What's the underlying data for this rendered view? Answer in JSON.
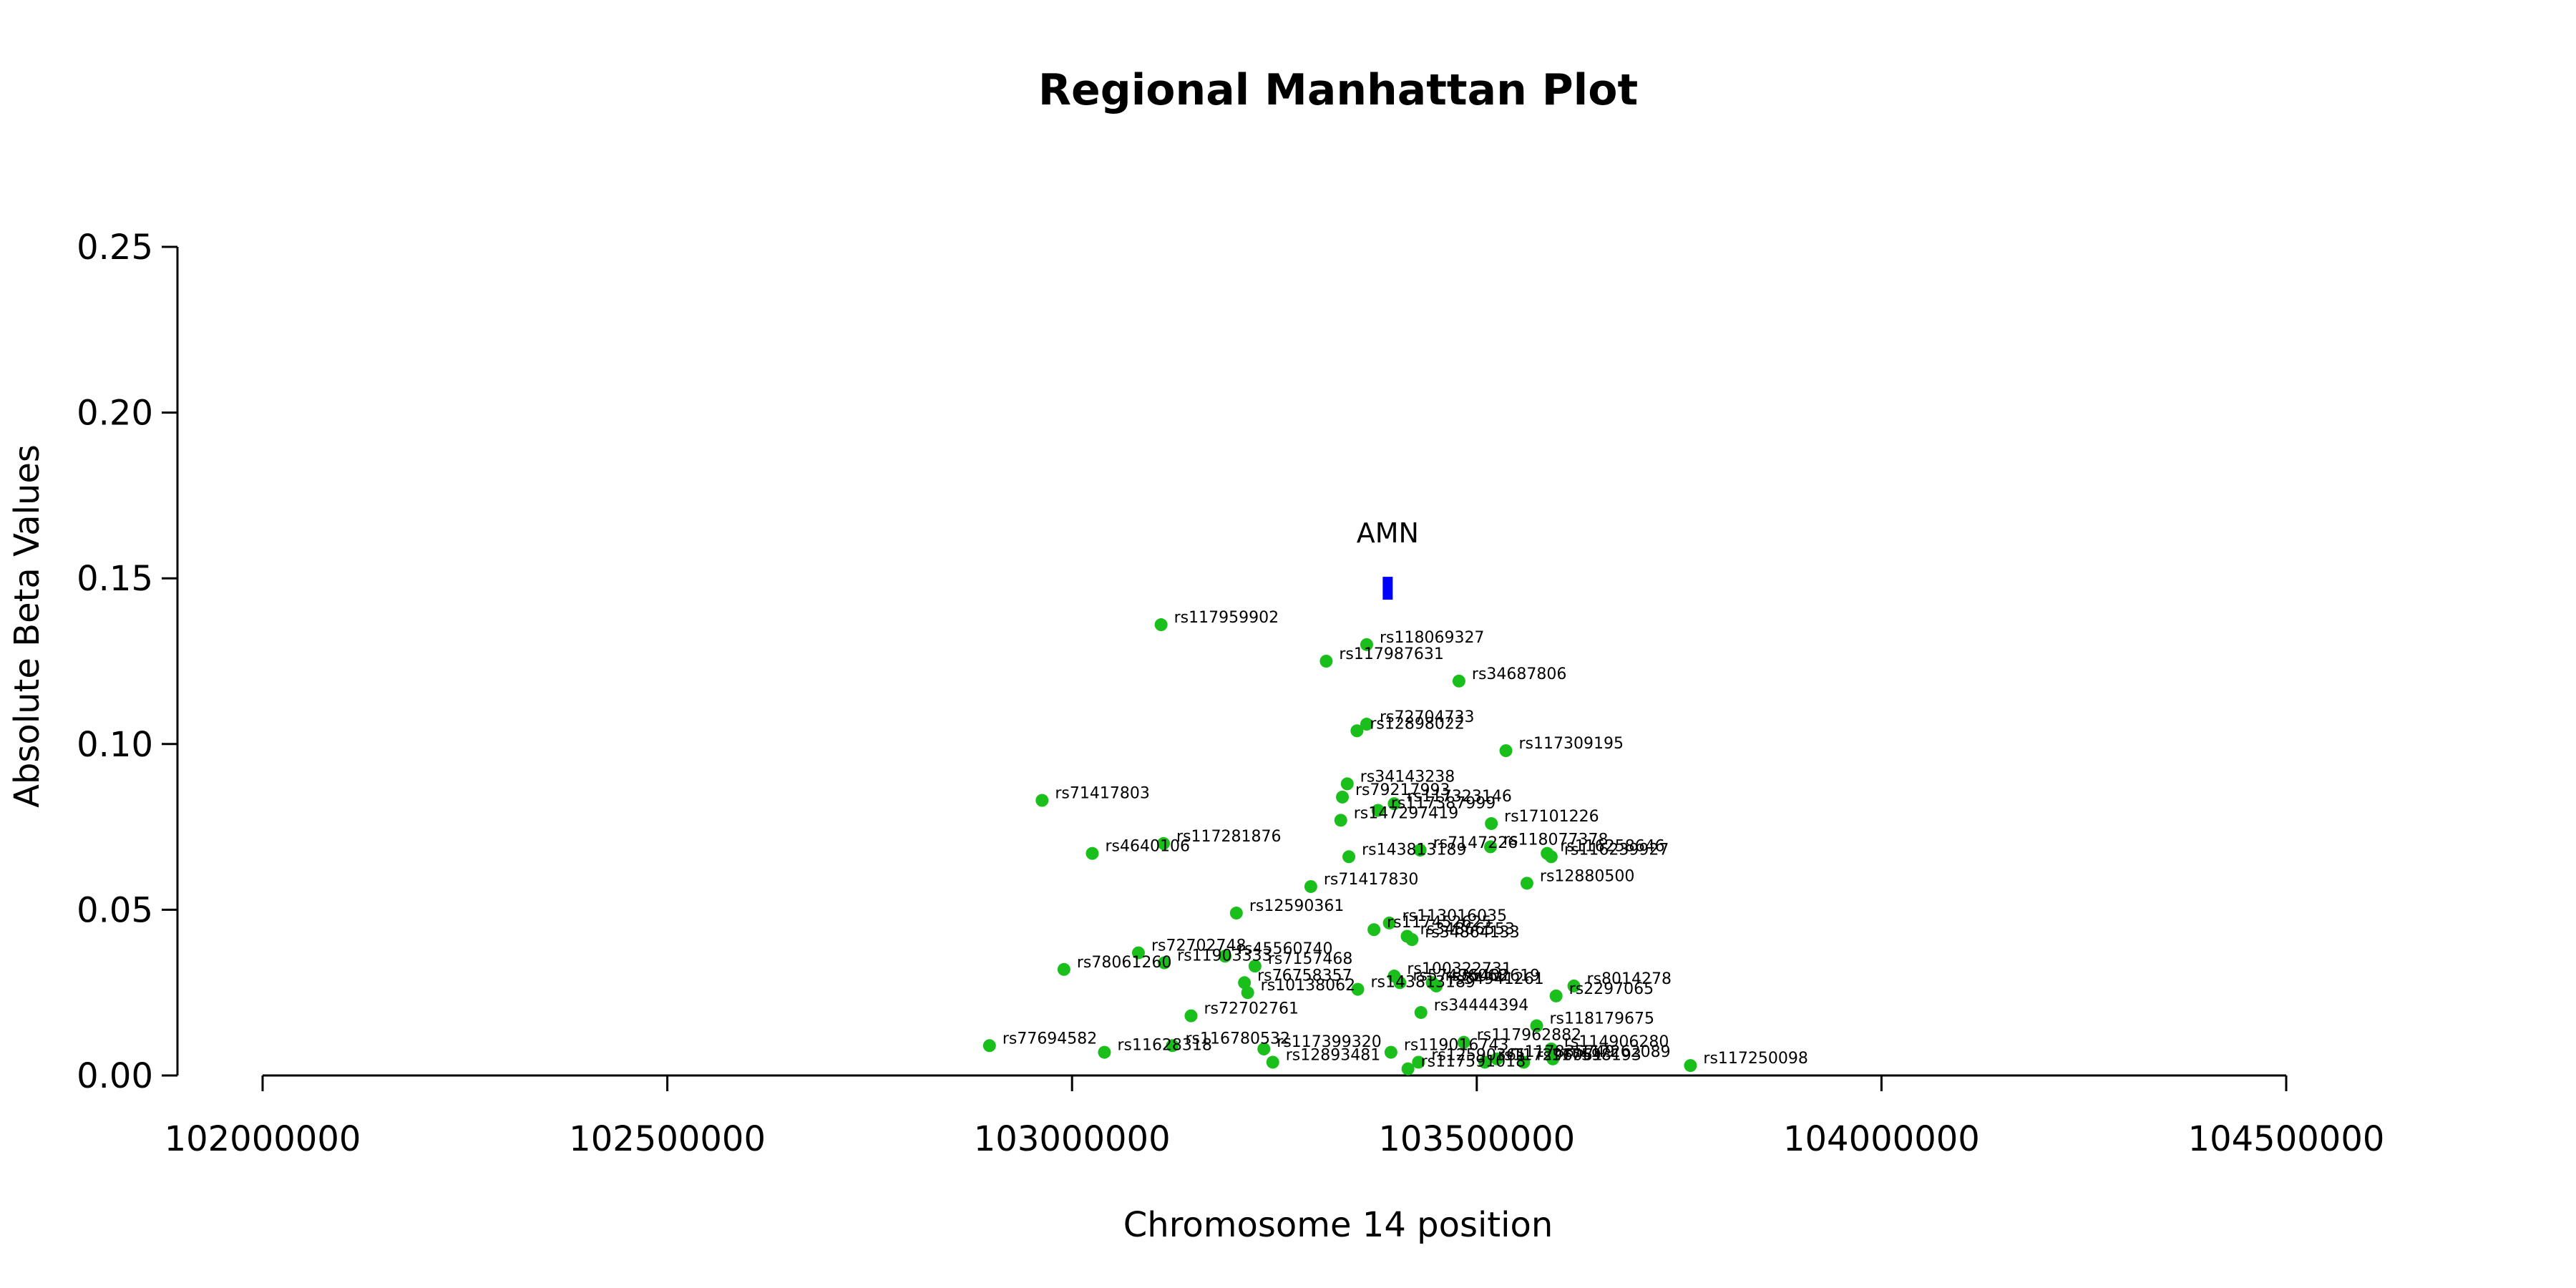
{
  "chart_data": {
    "type": "scatter",
    "title": "Regional Manhattan Plot",
    "xlabel": "Chromosome 14 position",
    "ylabel": "Absolute Beta Values",
    "xlim": [
      102000000,
      104500000
    ],
    "ylim": [
      0,
      0.25
    ],
    "x_ticks": [
      102000000,
      102500000,
      103000000,
      103500000,
      104000000,
      104500000
    ],
    "x_tick_labels": [
      "102000000",
      "102500000",
      "103000000",
      "103500000",
      "104000000",
      "104500000"
    ],
    "y_ticks": [
      0,
      0.05,
      0.1,
      0.15,
      0.2,
      0.25
    ],
    "y_tick_labels": [
      "0.00",
      "0.05",
      "0.10",
      "0.15",
      "0.20",
      "0.25"
    ],
    "grid": false,
    "point_color": "#1bbf1b",
    "gene_color": "#0000ff",
    "genes": [
      {
        "name": "AMN",
        "start": 103385000,
        "end": 103395000,
        "y": 0.147
      }
    ],
    "points": [
      {
        "id": "rs117959902",
        "x": 103110000,
        "y": 0.136
      },
      {
        "id": "rs118069327",
        "x": 103364000,
        "y": 0.13
      },
      {
        "id": "rs117987631",
        "x": 103314000,
        "y": 0.125
      },
      {
        "id": "rs34687806",
        "x": 103478000,
        "y": 0.119
      },
      {
        "id": "rs72704733",
        "x": 103364000,
        "y": 0.106
      },
      {
        "id": "rs12898022",
        "x": 103352000,
        "y": 0.104
      },
      {
        "id": "rs117309195",
        "x": 103536000,
        "y": 0.098
      },
      {
        "id": "rs34143238",
        "x": 103340000,
        "y": 0.088
      },
      {
        "id": "rs79217993",
        "x": 103334000,
        "y": 0.084
      },
      {
        "id": "rs71417803",
        "x": 102963000,
        "y": 0.083
      },
      {
        "id": "rs117323146",
        "x": 103398000,
        "y": 0.082
      },
      {
        "id": "rs117387999",
        "x": 103378000,
        "y": 0.08
      },
      {
        "id": "rs147297419",
        "x": 103332000,
        "y": 0.077
      },
      {
        "id": "rs17101226",
        "x": 103518000,
        "y": 0.076
      },
      {
        "id": "rs117281876",
        "x": 103113000,
        "y": 0.07
      },
      {
        "id": "rs7147226",
        "x": 103430000,
        "y": 0.068
      },
      {
        "id": "rs118077378",
        "x": 103517000,
        "y": 0.069
      },
      {
        "id": "rs4640106",
        "x": 103025000,
        "y": 0.067
      },
      {
        "id": "rs143813189",
        "x": 103342000,
        "y": 0.066
      },
      {
        "id": "rs116258646",
        "x": 103587000,
        "y": 0.067
      },
      {
        "id": "rs116239927",
        "x": 103592000,
        "y": 0.066
      },
      {
        "id": "rs71417830",
        "x": 103295000,
        "y": 0.057
      },
      {
        "id": "rs12880500",
        "x": 103562000,
        "y": 0.058
      },
      {
        "id": "rs12590361",
        "x": 103203000,
        "y": 0.049
      },
      {
        "id": "rs113016035",
        "x": 103392000,
        "y": 0.046
      },
      {
        "id": "rs117452625",
        "x": 103373000,
        "y": 0.044
      },
      {
        "id": "rs34866553",
        "x": 103414000,
        "y": 0.042
      },
      {
        "id": "rs34864133",
        "x": 103420000,
        "y": 0.041
      },
      {
        "id": "rs72702748",
        "x": 103082000,
        "y": 0.037
      },
      {
        "id": "rs45560740",
        "x": 103189000,
        "y": 0.036
      },
      {
        "id": "rs11903333",
        "x": 103114000,
        "y": 0.034
      },
      {
        "id": "rs7157468",
        "x": 103226000,
        "y": 0.033
      },
      {
        "id": "rs78061260",
        "x": 102990000,
        "y": 0.032
      },
      {
        "id": "rs100322731",
        "x": 103398000,
        "y": 0.03
      },
      {
        "id": "rs76758357",
        "x": 103213000,
        "y": 0.028
      },
      {
        "id": "rs8014278",
        "x": 103620000,
        "y": 0.027
      },
      {
        "id": "rs35402619",
        "x": 103445000,
        "y": 0.028
      },
      {
        "id": "rs34941261",
        "x": 103450000,
        "y": 0.027
      },
      {
        "id": "rs57496068",
        "x": 103405000,
        "y": 0.028
      },
      {
        "id": "rs10138062",
        "x": 103217000,
        "y": 0.025
      },
      {
        "id": "rs2297065",
        "x": 103598000,
        "y": 0.024
      },
      {
        "id": "rs143813189b",
        "x": 103353000,
        "y": 0.026
      },
      {
        "id": "rs34444394",
        "x": 103431000,
        "y": 0.019
      },
      {
        "id": "rs72702761",
        "x": 103147000,
        "y": 0.018
      },
      {
        "id": "rs118179675",
        "x": 103574000,
        "y": 0.015
      },
      {
        "id": "rs117962882",
        "x": 103484000,
        "y": 0.01
      },
      {
        "id": "rs114906280",
        "x": 103592000,
        "y": 0.008
      },
      {
        "id": "rs77694582",
        "x": 102898000,
        "y": 0.009
      },
      {
        "id": "rs116780532",
        "x": 103124000,
        "y": 0.009
      },
      {
        "id": "rs117399320",
        "x": 103237000,
        "y": 0.008
      },
      {
        "id": "rs11628318",
        "x": 103040000,
        "y": 0.007
      },
      {
        "id": "rs119016743",
        "x": 103394000,
        "y": 0.007
      },
      {
        "id": "rs117835749",
        "x": 103525000,
        "y": 0.005
      },
      {
        "id": "rs117598193",
        "x": 103558000,
        "y": 0.004
      },
      {
        "id": "rs117262089",
        "x": 103594000,
        "y": 0.005
      },
      {
        "id": "rs12893481",
        "x": 103248000,
        "y": 0.004
      },
      {
        "id": "rs117250098",
        "x": 103764000,
        "y": 0.003
      },
      {
        "id": "rs12590361b",
        "x": 103428000,
        "y": 0.004
      },
      {
        "id": "rs117296061",
        "x": 103510000,
        "y": 0.004
      },
      {
        "id": "rs117591018",
        "x": 103415000,
        "y": 0.002
      }
    ],
    "point_labels": [
      "rs117959902",
      "rs118069327",
      "rs117987631",
      "rs34687806",
      "rs72704733",
      "rs12898022",
      "rs117309195",
      "rs34143238",
      "rs79217993",
      "rs71417803",
      "rs117323146",
      "rs117387999",
      "rs147297419",
      "rs17101226",
      "rs117281876",
      "rs7147226",
      "rs118077378",
      "rs4640106",
      "rs143813189",
      "rs116258646",
      "rs116239927",
      "rs71417830",
      "rs12880500",
      "rs12590361",
      "rs113016035",
      "rs117452625",
      "rs34866553",
      "rs34864133",
      "rs72702748",
      "rs45560740",
      "rs11903333",
      "rs7157468",
      "rs78061260",
      "rs100322731",
      "rs76758357",
      "rs8014278",
      "rs35402619",
      "rs34941261",
      "rs57496068",
      "rs10138062",
      "rs2297065",
      "rs143813189",
      "rs34444394",
      "rs72702761",
      "rs118179675",
      "rs117962882",
      "rs114906280",
      "rs77694582",
      "rs116780532",
      "rs117399320",
      "rs11628318",
      "rs119016743",
      "rs117835749",
      "rs117598193",
      "rs117262089",
      "rs12893481",
      "rs117250098",
      "rs12590361",
      "rs117296061",
      "rs117591018"
    ]
  }
}
